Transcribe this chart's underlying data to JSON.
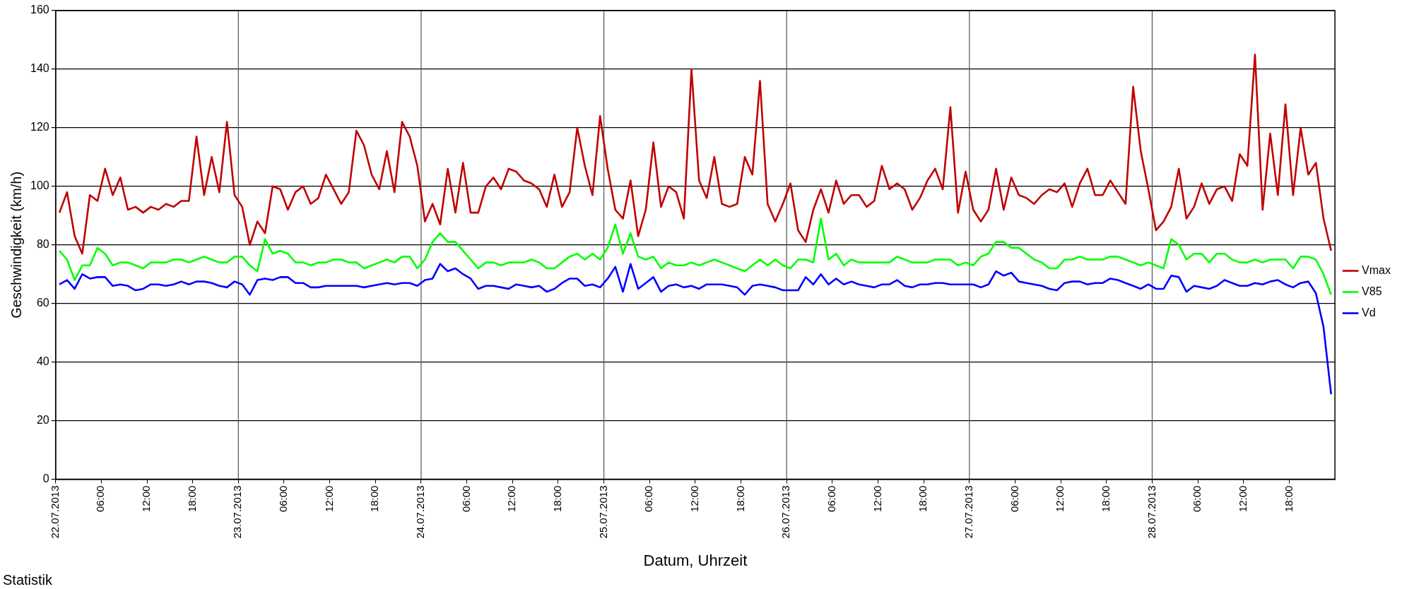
{
  "chart_data": {
    "type": "line",
    "xlabel": "Datum, Uhrzeit",
    "ylabel": "Geschwindigkeit (km/h)",
    "annotations": [
      "Statistik"
    ],
    "x": [
      "2013-07-22T00:30",
      "2013-07-22T01:30",
      "2013-07-22T02:30",
      "2013-07-22T03:30",
      "2013-07-22T04:30",
      "2013-07-22T05:30",
      "2013-07-22T06:30",
      "2013-07-22T07:30",
      "2013-07-22T08:30",
      "2013-07-22T09:30",
      "2013-07-22T10:30",
      "2013-07-22T11:30",
      "2013-07-22T12:30",
      "2013-07-22T13:30",
      "2013-07-22T14:30",
      "2013-07-22T15:30",
      "2013-07-22T16:30",
      "2013-07-22T17:30",
      "2013-07-22T18:30",
      "2013-07-22T19:30",
      "2013-07-22T20:30",
      "2013-07-22T21:30",
      "2013-07-22T22:30",
      "2013-07-22T23:30",
      "2013-07-23T00:30",
      "2013-07-23T01:30",
      "2013-07-23T02:30",
      "2013-07-23T03:30",
      "2013-07-23T04:30",
      "2013-07-23T05:30",
      "2013-07-23T06:30",
      "2013-07-23T07:30",
      "2013-07-23T08:30",
      "2013-07-23T09:30",
      "2013-07-23T10:30",
      "2013-07-23T11:30",
      "2013-07-23T12:30",
      "2013-07-23T13:30",
      "2013-07-23T14:30",
      "2013-07-23T15:30",
      "2013-07-23T16:30",
      "2013-07-23T17:30",
      "2013-07-23T18:30",
      "2013-07-23T19:30",
      "2013-07-23T20:30",
      "2013-07-23T21:30",
      "2013-07-23T22:30",
      "2013-07-23T23:30",
      "2013-07-24T00:30",
      "2013-07-24T01:30",
      "2013-07-24T02:30",
      "2013-07-24T03:30",
      "2013-07-24T04:30",
      "2013-07-24T05:30",
      "2013-07-24T06:30",
      "2013-07-24T07:30",
      "2013-07-24T08:30",
      "2013-07-24T09:30",
      "2013-07-24T10:30",
      "2013-07-24T11:30",
      "2013-07-24T12:30",
      "2013-07-24T13:30",
      "2013-07-24T14:30",
      "2013-07-24T15:30",
      "2013-07-24T16:30",
      "2013-07-24T17:30",
      "2013-07-24T18:30",
      "2013-07-24T19:30",
      "2013-07-24T20:30",
      "2013-07-24T21:30",
      "2013-07-24T22:30",
      "2013-07-24T23:30",
      "2013-07-25T00:30",
      "2013-07-25T01:30",
      "2013-07-25T02:30",
      "2013-07-25T03:30",
      "2013-07-25T04:30",
      "2013-07-25T05:30",
      "2013-07-25T06:30",
      "2013-07-25T07:30",
      "2013-07-25T08:30",
      "2013-07-25T09:30",
      "2013-07-25T10:30",
      "2013-07-25T11:30",
      "2013-07-25T12:30",
      "2013-07-25T13:30",
      "2013-07-25T14:30",
      "2013-07-25T15:30",
      "2013-07-25T16:30",
      "2013-07-25T17:30",
      "2013-07-25T18:30",
      "2013-07-25T19:30",
      "2013-07-25T20:30",
      "2013-07-25T21:30",
      "2013-07-25T22:30",
      "2013-07-25T23:30",
      "2013-07-26T00:30",
      "2013-07-26T01:30",
      "2013-07-26T02:30",
      "2013-07-26T03:30",
      "2013-07-26T04:30",
      "2013-07-26T05:30",
      "2013-07-26T06:30",
      "2013-07-26T07:30",
      "2013-07-26T08:30",
      "2013-07-26T09:30",
      "2013-07-26T10:30",
      "2013-07-26T11:30",
      "2013-07-26T12:30",
      "2013-07-26T13:30",
      "2013-07-26T14:30",
      "2013-07-26T15:30",
      "2013-07-26T16:30",
      "2013-07-26T17:30",
      "2013-07-26T18:30",
      "2013-07-26T19:30",
      "2013-07-26T20:30",
      "2013-07-26T21:30",
      "2013-07-26T22:30",
      "2013-07-26T23:30",
      "2013-07-27T00:30",
      "2013-07-27T01:30",
      "2013-07-27T02:30",
      "2013-07-27T03:30",
      "2013-07-27T04:30",
      "2013-07-27T05:30",
      "2013-07-27T06:30",
      "2013-07-27T07:30",
      "2013-07-27T08:30",
      "2013-07-27T09:30",
      "2013-07-27T10:30",
      "2013-07-27T11:30",
      "2013-07-27T12:30",
      "2013-07-27T13:30",
      "2013-07-27T14:30",
      "2013-07-27T15:30",
      "2013-07-27T16:30",
      "2013-07-27T17:30",
      "2013-07-27T18:30",
      "2013-07-27T19:30",
      "2013-07-27T20:30",
      "2013-07-27T21:30",
      "2013-07-27T22:30",
      "2013-07-27T23:30",
      "2013-07-28T00:30",
      "2013-07-28T01:30",
      "2013-07-28T02:30",
      "2013-07-28T03:30",
      "2013-07-28T04:30",
      "2013-07-28T05:30",
      "2013-07-28T06:30",
      "2013-07-28T07:30",
      "2013-07-28T08:30",
      "2013-07-28T09:30",
      "2013-07-28T10:30",
      "2013-07-28T11:30",
      "2013-07-28T12:30",
      "2013-07-28T13:30",
      "2013-07-28T14:30",
      "2013-07-28T15:30",
      "2013-07-28T16:30",
      "2013-07-28T17:30",
      "2013-07-28T18:30",
      "2013-07-28T19:30",
      "2013-07-28T20:30",
      "2013-07-28T21:30",
      "2013-07-28T22:30",
      "2013-07-28T23:30"
    ],
    "series": [
      {
        "name": "Vmax",
        "color": "#c00000",
        "values": [
          91,
          98,
          83,
          77,
          97,
          95,
          106,
          97,
          103,
          92,
          93,
          91,
          93,
          92,
          94,
          93,
          95,
          95,
          117,
          97,
          110,
          98,
          122,
          97,
          93,
          80,
          88,
          84,
          100,
          99,
          92,
          98,
          100,
          94,
          96,
          104,
          99,
          94,
          98,
          119,
          114,
          104,
          99,
          112,
          98,
          122,
          117,
          107,
          88,
          94,
          87,
          106,
          91,
          108,
          91,
          91,
          100,
          103,
          99,
          106,
          105,
          102,
          101,
          99,
          93,
          104,
          93,
          98,
          120,
          107,
          97,
          124,
          106,
          92,
          89,
          102,
          83,
          92,
          115,
          93,
          100,
          98,
          89,
          140,
          102,
          96,
          110,
          94,
          93,
          94,
          110,
          104,
          136,
          94,
          88,
          94,
          101,
          85,
          81,
          92,
          99,
          91,
          102,
          94,
          97,
          97,
          93,
          95,
          107,
          99,
          101,
          99,
          92,
          96,
          102,
          106,
          99,
          127,
          91,
          105,
          92,
          88,
          92,
          106,
          92,
          103,
          97,
          96,
          94,
          97,
          99,
          98,
          101,
          93,
          101,
          106,
          97,
          97,
          102,
          98,
          94,
          134,
          112,
          99,
          85,
          88,
          93,
          106,
          89,
          93,
          101,
          94,
          99,
          100,
          95,
          111,
          107,
          145,
          92,
          118,
          97,
          128,
          97,
          120,
          104,
          108,
          89,
          78
        ]
      },
      {
        "name": "V85",
        "color": "#00ff00",
        "values": [
          78,
          75,
          68,
          73,
          73,
          79,
          77,
          73,
          74,
          74,
          73,
          72,
          74,
          74,
          74,
          75,
          75,
          74,
          75,
          76,
          75,
          74,
          74,
          76,
          76,
          73,
          71,
          82,
          77,
          78,
          77,
          74,
          74,
          73,
          74,
          74,
          75,
          75,
          74,
          74,
          72,
          73,
          74,
          75,
          74,
          76,
          76,
          72,
          75,
          81,
          84,
          81,
          81,
          78,
          75,
          72,
          74,
          74,
          73,
          74,
          74,
          74,
          75,
          74,
          72,
          72,
          74,
          76,
          77,
          75,
          77,
          75,
          79,
          87,
          77,
          84,
          76,
          75,
          76,
          72,
          74,
          73,
          73,
          74,
          73,
          74,
          75,
          74,
          73,
          72,
          71,
          73,
          75,
          73,
          75,
          73,
          72,
          75,
          75,
          74,
          89,
          75,
          77,
          73,
          75,
          74,
          74,
          74,
          74,
          74,
          76,
          75,
          74,
          74,
          74,
          75,
          75,
          75,
          73,
          74,
          73,
          76,
          77,
          81,
          81,
          79,
          79,
          77,
          75,
          74,
          72,
          72,
          75,
          75,
          76,
          75,
          75,
          75,
          76,
          76,
          75,
          74,
          73,
          74,
          73,
          72,
          82,
          80,
          75,
          77,
          77,
          74,
          77,
          77,
          75,
          74,
          74,
          75,
          74,
          75,
          75,
          75,
          72,
          76,
          76,
          75,
          70,
          63
        ]
      },
      {
        "name": "Vd",
        "color": "#0000ff",
        "values": [
          66.5,
          68,
          65,
          70,
          68.5,
          69,
          69,
          66,
          66.5,
          66,
          64.5,
          65,
          66.5,
          66.5,
          66,
          66.5,
          67.5,
          66.5,
          67.5,
          67.5,
          67,
          66,
          65.5,
          67.5,
          66.5,
          63,
          68,
          68.5,
          68,
          69,
          69,
          67,
          67,
          65.5,
          65.5,
          66,
          66,
          66,
          66,
          66,
          65.5,
          66,
          66.5,
          67,
          66.5,
          67,
          67,
          66,
          68,
          68.5,
          73.5,
          71,
          72,
          70,
          68.5,
          65,
          66,
          66,
          65.5,
          65,
          66.5,
          66,
          65.5,
          66,
          64,
          65,
          67,
          68.5,
          68.5,
          66,
          66.5,
          65.5,
          68.5,
          72.5,
          64,
          73.5,
          65,
          67,
          69,
          64,
          66,
          66.5,
          65.5,
          66,
          65,
          66.5,
          66.5,
          66.5,
          66,
          65.5,
          63,
          66,
          66.5,
          66,
          65.5,
          64.5,
          64.5,
          64.5,
          69,
          66.5,
          70,
          66.5,
          68.5,
          66.5,
          67.5,
          66.5,
          66,
          65.5,
          66.5,
          66.5,
          68,
          66,
          65.5,
          66.5,
          66.5,
          67,
          67,
          66.5,
          66.5,
          66.5,
          66.5,
          65.5,
          66.5,
          71,
          69.5,
          70.5,
          67.5,
          67,
          66.5,
          66,
          65,
          64.5,
          67,
          67.5,
          67.5,
          66.5,
          67,
          67,
          68.5,
          68,
          67,
          66,
          65,
          66.5,
          65,
          65,
          69.5,
          69,
          64,
          66,
          65.5,
          65,
          66,
          68,
          67,
          66,
          66,
          67,
          66.5,
          67.5,
          68,
          66.5,
          65.5,
          67,
          67.5,
          63.5,
          52,
          29
        ]
      }
    ],
    "xlim": [
      "2013-07-22T00:00",
      "2013-07-29T00:00"
    ],
    "xticks": [
      {
        "value": "2013-07-22T00:00",
        "label": "22.07.2013"
      },
      {
        "value": "2013-07-22T06:00",
        "label": "06:00"
      },
      {
        "value": "2013-07-22T12:00",
        "label": "12:00"
      },
      {
        "value": "2013-07-22T18:00",
        "label": "18:00"
      },
      {
        "value": "2013-07-23T00:00",
        "label": "23.07.2013"
      },
      {
        "value": "2013-07-23T06:00",
        "label": "06:00"
      },
      {
        "value": "2013-07-23T12:00",
        "label": "12:00"
      },
      {
        "value": "2013-07-23T18:00",
        "label": "18:00"
      },
      {
        "value": "2013-07-24T00:00",
        "label": "24.07.2013"
      },
      {
        "value": "2013-07-24T06:00",
        "label": "06:00"
      },
      {
        "value": "2013-07-24T12:00",
        "label": "12:00"
      },
      {
        "value": "2013-07-24T18:00",
        "label": "18:00"
      },
      {
        "value": "2013-07-25T00:00",
        "label": "25.07.2013"
      },
      {
        "value": "2013-07-25T06:00",
        "label": "06:00"
      },
      {
        "value": "2013-07-25T12:00",
        "label": "12:00"
      },
      {
        "value": "2013-07-25T18:00",
        "label": "18:00"
      },
      {
        "value": "2013-07-26T00:00",
        "label": "26.07.2013"
      },
      {
        "value": "2013-07-26T06:00",
        "label": "06:00"
      },
      {
        "value": "2013-07-26T12:00",
        "label": "12:00"
      },
      {
        "value": "2013-07-26T18:00",
        "label": "18:00"
      },
      {
        "value": "2013-07-27T00:00",
        "label": "27.07.2013"
      },
      {
        "value": "2013-07-27T06:00",
        "label": "06:00"
      },
      {
        "value": "2013-07-27T12:00",
        "label": "12:00"
      },
      {
        "value": "2013-07-27T18:00",
        "label": "18:00"
      },
      {
        "value": "2013-07-28T00:00",
        "label": "28.07.2013"
      },
      {
        "value": "2013-07-28T06:00",
        "label": "06:00"
      },
      {
        "value": "2013-07-28T12:00",
        "label": "12:00"
      },
      {
        "value": "2013-07-28T18:00",
        "label": "18:00"
      }
    ],
    "ylim": [
      0,
      160
    ],
    "yticks": [
      0,
      20,
      40,
      60,
      80,
      100,
      120,
      140,
      160
    ],
    "ref_lines": [
      {
        "axis": "x",
        "value": "2013-07-23T00:00",
        "color": "#555555"
      },
      {
        "axis": "x",
        "value": "2013-07-24T00:00",
        "color": "#555555"
      },
      {
        "axis": "x",
        "value": "2013-07-25T00:00",
        "color": "#555555"
      },
      {
        "axis": "x",
        "value": "2013-07-26T00:00",
        "color": "#555555"
      },
      {
        "axis": "x",
        "value": "2013-07-27T00:00",
        "color": "#555555"
      },
      {
        "axis": "x",
        "value": "2013-07-28T00:00",
        "color": "#555555"
      }
    ],
    "grid": "y",
    "legend": "right",
    "marker": "none",
    "line_style": "solid"
  }
}
